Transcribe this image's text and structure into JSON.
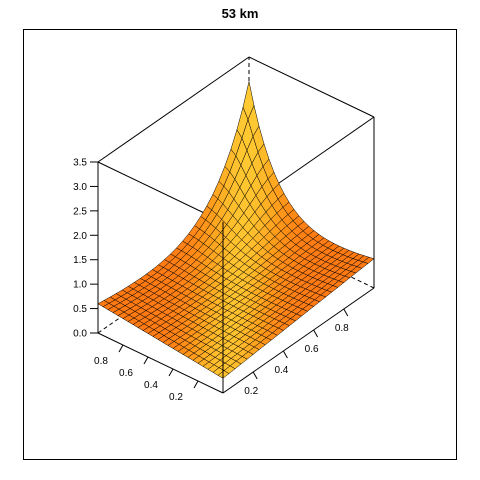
{
  "chart_data": {
    "type": "surface3d",
    "title": "53 km",
    "xlabel": "",
    "ylabel": "",
    "zlabel": "",
    "x_range": [
      0,
      1
    ],
    "y_range": [
      0,
      1
    ],
    "z_range": [
      0,
      3.5
    ],
    "z_ticks": [
      "0.0",
      "0.5",
      "1.0",
      "1.5",
      "2.0",
      "2.5",
      "3.0",
      "3.5"
    ],
    "x_ticks": [
      "0.2",
      "0.4",
      "0.6",
      "0.8"
    ],
    "y_ticks": [
      "0.2",
      "0.4",
      "0.6",
      "0.8"
    ],
    "grid_size": 25,
    "peak": {
      "x": 1.0,
      "y": 1.0,
      "z": 3.3
    },
    "corner_values": {
      "near": 0.3,
      "left": 0.6,
      "right": 0.6,
      "far": 3.3
    },
    "colors": {
      "low": "#FF6A10",
      "mid": "#FF9A1A",
      "high": "#FFCC33",
      "mesh": "#000000"
    },
    "box": "full",
    "grid": false
  }
}
